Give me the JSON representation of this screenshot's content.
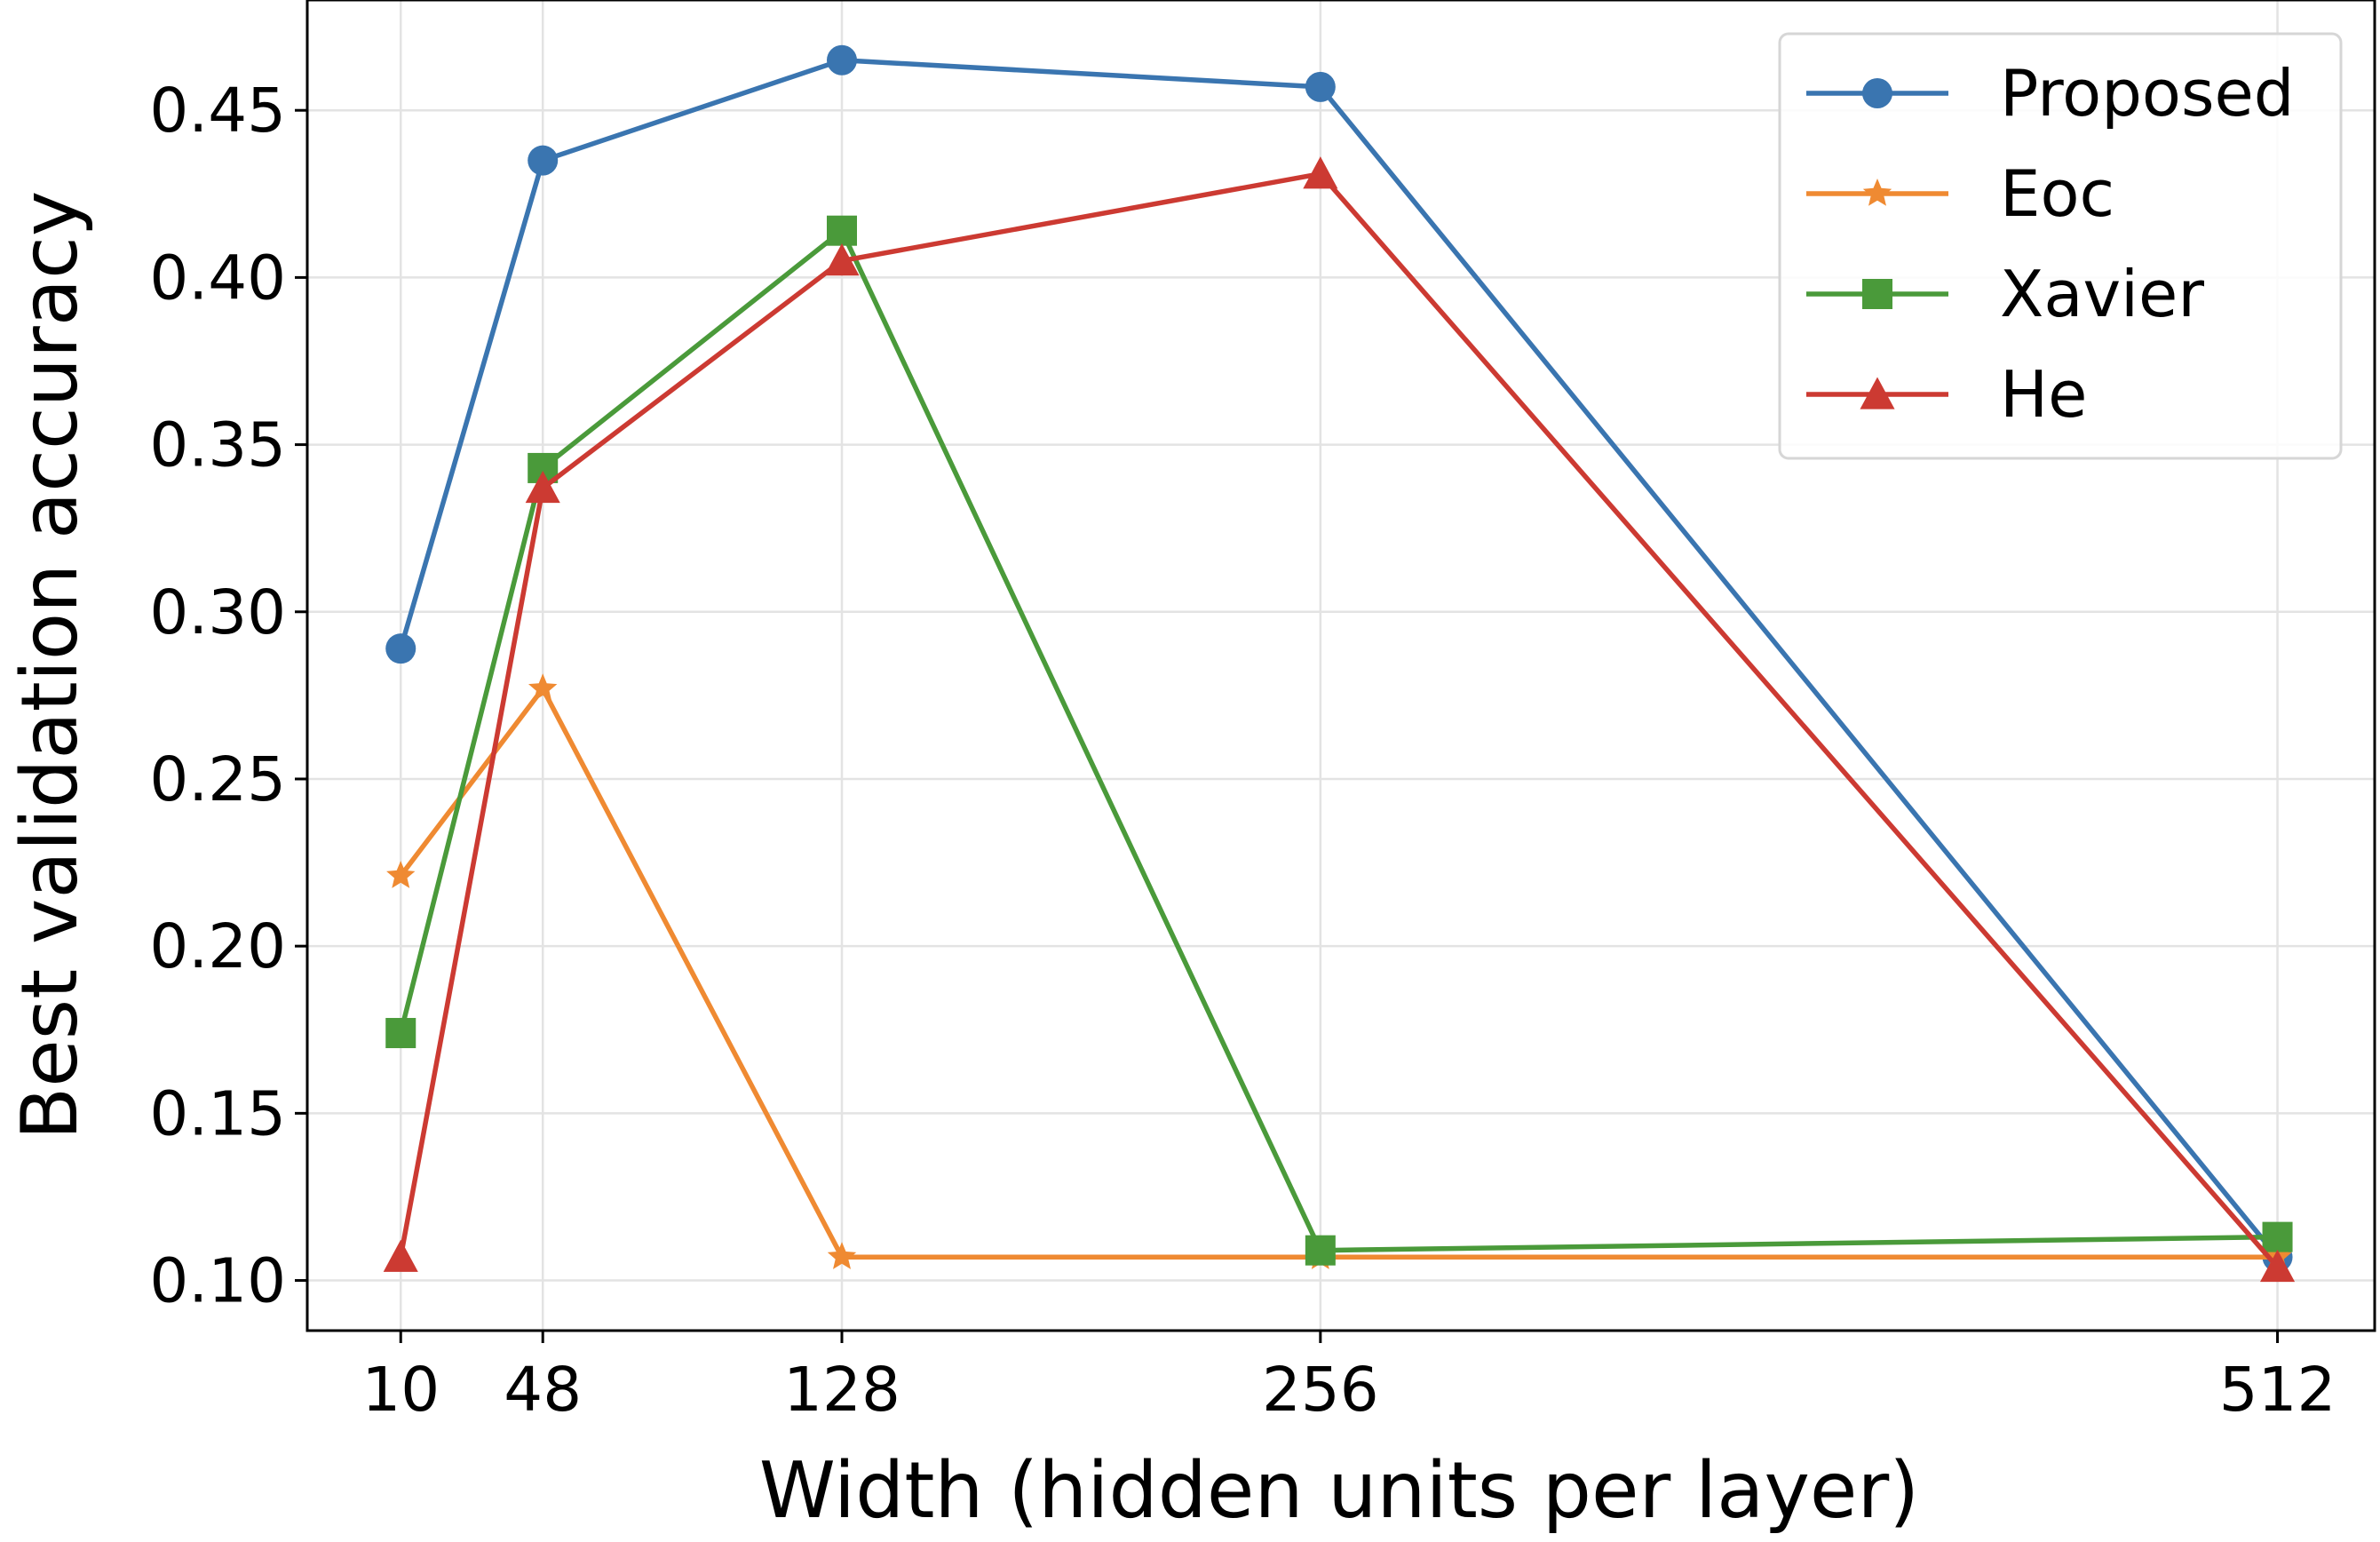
{
  "chart_data": {
    "type": "line",
    "xlabel": "Width (hidden units per layer)",
    "ylabel": "Best validation accuracy",
    "x": [
      10,
      48,
      128,
      256,
      512
    ],
    "xticks": [
      "10",
      "48",
      "128",
      "256",
      "512"
    ],
    "yticks": [
      "0.10",
      "0.15",
      "0.20",
      "0.25",
      "0.30",
      "0.35",
      "0.40",
      "0.45"
    ],
    "xlim": [
      -15,
      538
    ],
    "ylim": [
      0.085,
      0.483
    ],
    "grid": true,
    "legend_position": "top-right",
    "series": [
      {
        "name": "Proposed",
        "color": "#3a75b0",
        "marker": "circle",
        "values": [
          0.289,
          0.435,
          0.465,
          0.457,
          0.107
        ]
      },
      {
        "name": "Eoc",
        "color": "#ef8a32",
        "marker": "star",
        "values": [
          0.221,
          0.277,
          0.107,
          0.107,
          0.107
        ]
      },
      {
        "name": "Xavier",
        "color": "#4a9a3a",
        "marker": "square",
        "values": [
          0.174,
          0.343,
          0.414,
          0.109,
          0.113
        ]
      },
      {
        "name": "He",
        "color": "#cc3a32",
        "marker": "triangle",
        "values": [
          0.107,
          0.337,
          0.405,
          0.431,
          0.104
        ]
      }
    ]
  }
}
